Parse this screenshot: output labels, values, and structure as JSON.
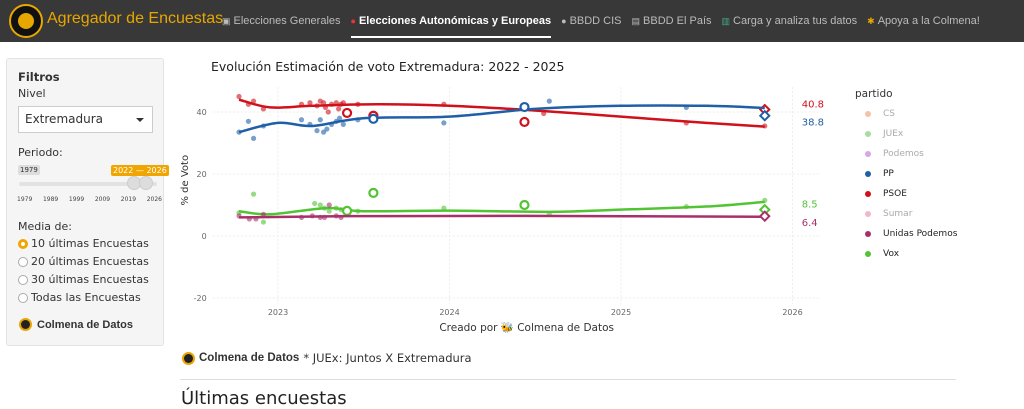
{
  "navbar": {
    "brand": "Agregador de Encuestas",
    "items": [
      {
        "label": "Elecciones Generales",
        "icon": "ballot-box-icon",
        "active": false
      },
      {
        "label": "Elecciones Autonómicas y Europeas",
        "icon": "pin-icon",
        "active": true
      },
      {
        "label": "BBDD CIS",
        "icon": "disc-icon",
        "active": false
      },
      {
        "label": "BBDD El País",
        "icon": "floppy-icon",
        "active": false
      },
      {
        "label": "Carga y analiza tus datos",
        "icon": "bar-chart-icon",
        "active": false
      },
      {
        "label": "Apoya a la Colmena!",
        "icon": "bee-icon",
        "active": false
      }
    ]
  },
  "sidebar": {
    "title": "Filtros",
    "nivel_label": "Nivel",
    "nivel_value": "Extremadura",
    "periodo_label": "Periodo:",
    "slider": {
      "min": 1979,
      "max": 2026,
      "from": 2022,
      "to": 2026,
      "min_label": "1979",
      "range_label": "2022 — 2026",
      "ticks": [
        "1979",
        "1989",
        "1999",
        "2009",
        "2019",
        "2026"
      ]
    },
    "media_label": "Media de:",
    "media_options": [
      "10 últimas Encuestas",
      "20 últimas Encuestas",
      "30 últimas Encuestas",
      "Todas las Encuestas"
    ],
    "media_selected": 0,
    "brand": "Colmena de Datos"
  },
  "chart_data": {
    "type": "scatter",
    "title": "Evolución Estimación de voto Extremadura: 2022 - 2025",
    "xlabel": "Creado por 🐝 Colmena de Datos",
    "ylabel": "% de Voto",
    "xticks": [
      "2023",
      "2024",
      "2025",
      "2026"
    ],
    "yticks": [
      -20,
      0,
      20,
      40
    ],
    "xlim": [
      "2022-08-15",
      "2026-03-01"
    ],
    "ylim": [
      -22,
      48
    ],
    "grid": true,
    "legend": {
      "title": "partido",
      "position": "right",
      "entries": [
        {
          "name": "CS",
          "color": "#f2c4a8",
          "faded": true
        },
        {
          "name": "JUEx",
          "color": "#a8dca0",
          "faded": true
        },
        {
          "name": "Podemos",
          "color": "#d9a6e8",
          "faded": true
        },
        {
          "name": "PP",
          "color": "#1f5fa8",
          "faded": false
        },
        {
          "name": "PSOE",
          "color": "#d0101a",
          "faded": false
        },
        {
          "name": "Sumar",
          "color": "#f0b8cc",
          "faded": true
        },
        {
          "name": "Unidas Podemos",
          "color": "#a8306a",
          "faded": false
        },
        {
          "name": "Vox",
          "color": "#52c434",
          "faded": false
        }
      ]
    },
    "series": [
      {
        "name": "PSOE",
        "color": "#d0101a",
        "points": [
          [
            "2022-10-10",
            45
          ],
          [
            "2022-10-30",
            42.5
          ],
          [
            "2022-11-10",
            43.5
          ],
          [
            "2022-12-01",
            41
          ],
          [
            "2023-02-20",
            42.5
          ],
          [
            "2023-03-10",
            43
          ],
          [
            "2023-03-25",
            42
          ],
          [
            "2023-04-01",
            43.5
          ],
          [
            "2023-04-08",
            43
          ],
          [
            "2023-04-12",
            41.5
          ],
          [
            "2023-04-18",
            40
          ],
          [
            "2023-04-25",
            42.5
          ],
          [
            "2023-05-05",
            43
          ],
          [
            "2023-05-10",
            41
          ],
          [
            "2023-05-15",
            42.5
          ],
          [
            "2023-05-20",
            43
          ],
          [
            "2023-06-20",
            42.5
          ],
          [
            "2023-12-20",
            42.5
          ],
          [
            "2024-07-20",
            39.5
          ],
          [
            "2025-05-20",
            36.5
          ],
          [
            "2025-11-03",
            35.5
          ]
        ],
        "trend": [
          [
            "2022-10-10",
            44
          ],
          [
            "2022-12-15",
            41.5
          ],
          [
            "2023-03-15",
            42
          ],
          [
            "2023-08-01",
            42.5
          ],
          [
            "2024-01-01",
            42
          ],
          [
            "2024-07-01",
            40.5
          ],
          [
            "2025-01-01",
            38.5
          ],
          [
            "2025-07-01",
            36.5
          ],
          [
            "2025-11-03",
            35.3
          ]
        ],
        "averages": [
          [
            "2023-05-28",
            39.7
          ],
          [
            "2023-07-23",
            38.8
          ],
          [
            "2024-06-09",
            36.8
          ]
        ],
        "estimate": {
          "date": "2025-11-03",
          "value": 40.8,
          "label": "40.8"
        }
      },
      {
        "name": "PP",
        "color": "#1f5fa8",
        "points": [
          [
            "2022-10-10",
            33.5
          ],
          [
            "2022-10-30",
            37
          ],
          [
            "2022-11-10",
            31.5
          ],
          [
            "2022-12-01",
            35.5
          ],
          [
            "2023-02-20",
            37.5
          ],
          [
            "2023-03-10",
            36
          ],
          [
            "2023-03-25",
            34
          ],
          [
            "2023-04-01",
            37.5
          ],
          [
            "2023-04-08",
            33.5
          ],
          [
            "2023-04-15",
            34.5
          ],
          [
            "2023-04-25",
            36
          ],
          [
            "2023-05-05",
            37
          ],
          [
            "2023-05-12",
            38
          ],
          [
            "2023-05-20",
            36
          ],
          [
            "2023-06-20",
            37.5
          ],
          [
            "2023-12-20",
            36.5
          ],
          [
            "2024-08-01",
            43.5
          ],
          [
            "2025-05-20",
            41.5
          ]
        ],
        "trend": [
          [
            "2022-10-10",
            33.5
          ],
          [
            "2023-01-01",
            36.5
          ],
          [
            "2023-03-15",
            35.5
          ],
          [
            "2023-07-01",
            38
          ],
          [
            "2024-01-01",
            38.5
          ],
          [
            "2024-07-01",
            41
          ],
          [
            "2025-01-01",
            42
          ],
          [
            "2025-07-01",
            42
          ],
          [
            "2025-11-03",
            41.3
          ]
        ],
        "averages": [
          [
            "2023-07-23",
            37.8
          ],
          [
            "2024-06-09",
            41.6
          ]
        ],
        "estimate": {
          "date": "2025-11-03",
          "value": 38.8,
          "label": "38.8"
        }
      },
      {
        "name": "Vox",
        "color": "#52c434",
        "points": [
          [
            "2022-10-10",
            7.5
          ],
          [
            "2022-11-10",
            13.5
          ],
          [
            "2022-12-01",
            4.5
          ],
          [
            "2023-03-20",
            10.5
          ],
          [
            "2023-04-01",
            10
          ],
          [
            "2023-04-10",
            9
          ],
          [
            "2023-04-20",
            8
          ],
          [
            "2023-05-05",
            9
          ],
          [
            "2023-05-15",
            8.5
          ],
          [
            "2023-06-20",
            8
          ],
          [
            "2023-12-20",
            9
          ],
          [
            "2024-08-01",
            7
          ],
          [
            "2025-05-20",
            9.5
          ],
          [
            "2025-11-03",
            11.5
          ]
        ],
        "trend": [
          [
            "2022-10-10",
            8
          ],
          [
            "2022-12-15",
            7
          ],
          [
            "2023-04-15",
            9
          ],
          [
            "2023-07-01",
            8
          ],
          [
            "2024-01-01",
            8.2
          ],
          [
            "2024-08-01",
            7.8
          ],
          [
            "2025-01-01",
            8.5
          ],
          [
            "2025-07-01",
            9.5
          ],
          [
            "2025-11-03",
            11
          ]
        ],
        "averages": [
          [
            "2023-05-28",
            8.1
          ],
          [
            "2023-07-23",
            13.9
          ],
          [
            "2024-06-09",
            10
          ]
        ],
        "estimate": {
          "date": "2025-11-03",
          "value": 8.5,
          "label": "8.5"
        }
      },
      {
        "name": "Unidas Podemos",
        "color": "#a8306a",
        "points": [
          [
            "2022-10-10",
            6.5
          ],
          [
            "2022-11-01",
            5.5
          ],
          [
            "2022-11-15",
            5.5
          ],
          [
            "2022-12-01",
            7
          ],
          [
            "2023-02-20",
            6
          ],
          [
            "2023-03-15",
            6.5
          ],
          [
            "2023-04-01",
            6
          ],
          [
            "2023-04-10",
            6
          ],
          [
            "2023-04-20",
            10
          ],
          [
            "2023-05-05",
            6.5
          ],
          [
            "2023-05-15",
            6
          ]
        ],
        "trend": [
          [
            "2022-10-10",
            6
          ],
          [
            "2023-06-01",
            6.4
          ],
          [
            "2024-06-01",
            6.5
          ],
          [
            "2025-11-03",
            6.2
          ]
        ],
        "averages": [],
        "estimate": {
          "date": "2025-11-03",
          "value": 6.4,
          "label": "6.4"
        }
      }
    ]
  },
  "footer": {
    "brand": "Colmena de Datos",
    "note": "* JUEx: Juntos X Extremadura"
  },
  "section_title": "Últimas encuestas"
}
